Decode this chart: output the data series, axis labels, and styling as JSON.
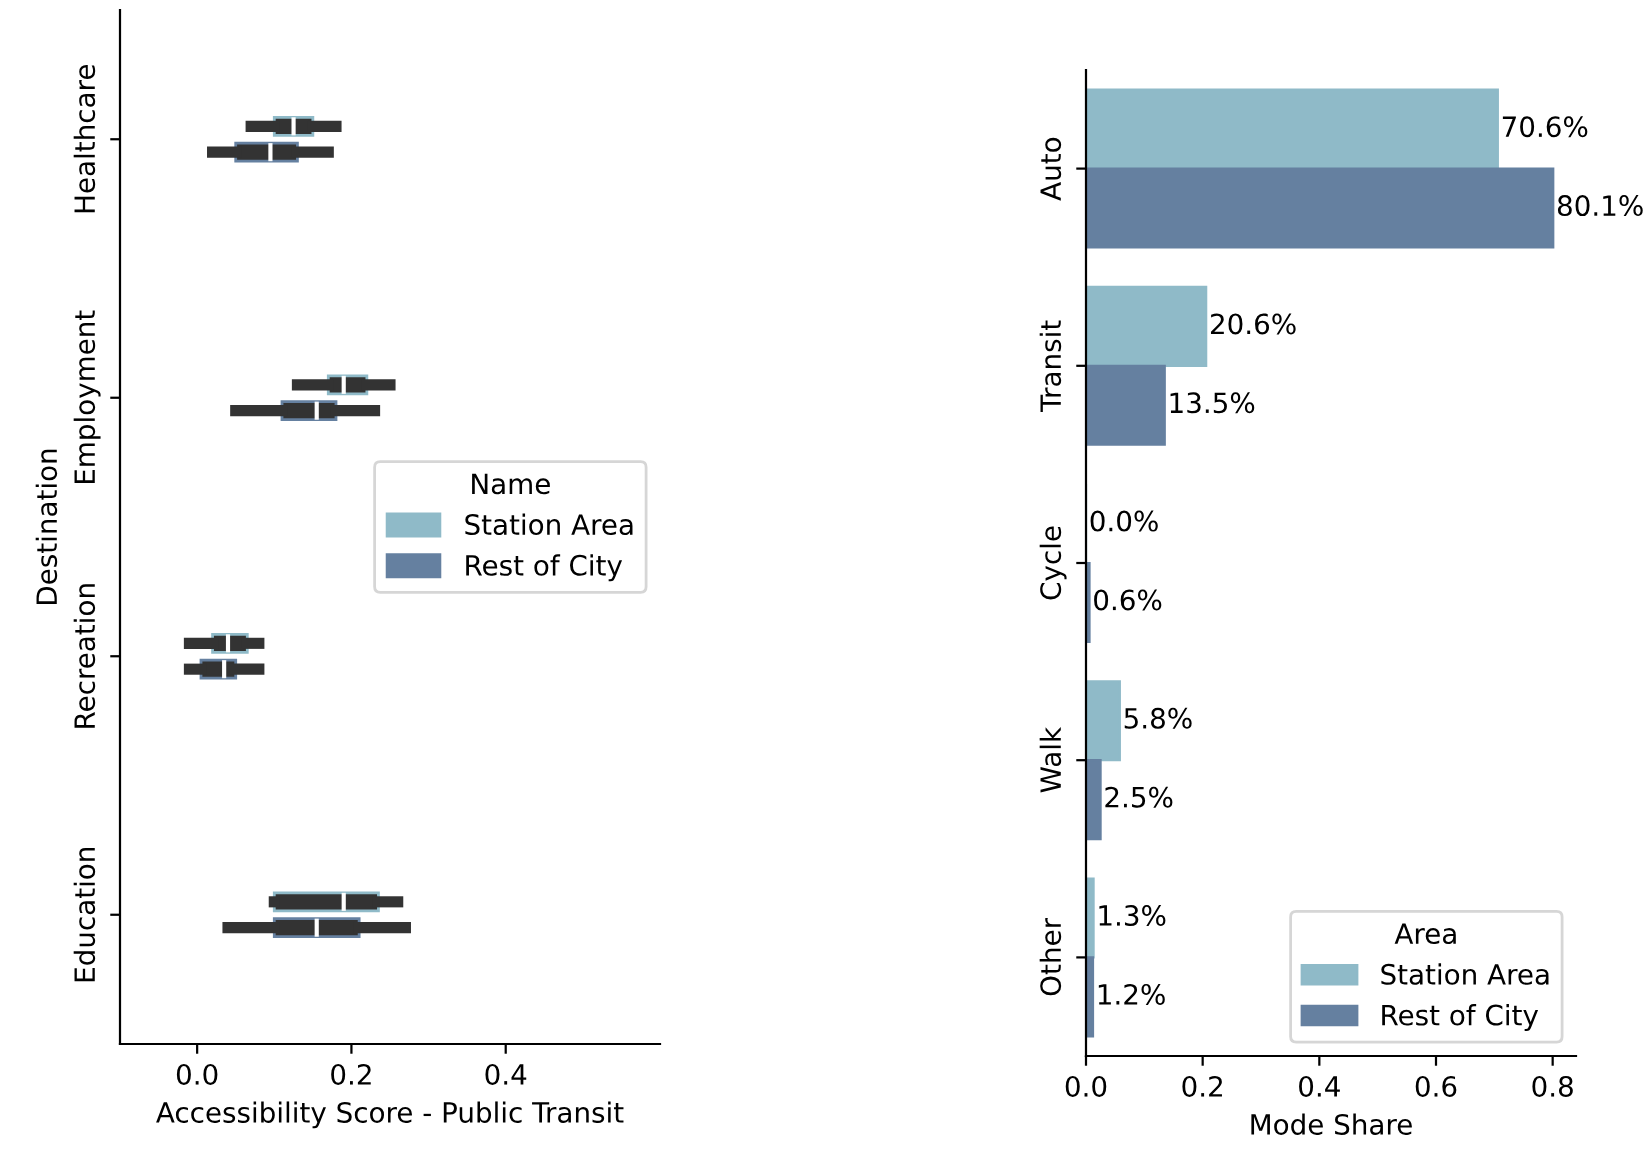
{
  "chart_data": [
    {
      "type": "box",
      "orientation": "horizontal",
      "xlabel": "Accessibility Score - Public Transit",
      "ylabel": "Destination",
      "legend_title": "Name",
      "legend": "center right",
      "categories": [
        "Healthcare",
        "Employment",
        "Recreation",
        "Education"
      ],
      "xlim": [
        -0.1,
        0.6
      ],
      "xticks": [
        {
          "value": 0,
          "label": "0.0"
        },
        0.2,
        0.4
      ],
      "series": [
        {
          "name": "Station Area",
          "color": "#8fbac8",
          "boxes": [
            {
              "low": 0.07,
              "q1": 0.1,
              "median": 0.125,
              "q3": 0.15,
              "high": 0.18
            },
            {
              "low": 0.13,
              "q1": 0.17,
              "median": 0.19,
              "q3": 0.22,
              "high": 0.25
            },
            {
              "low": -0.01,
              "q1": 0.02,
              "median": 0.04,
              "q3": 0.065,
              "high": 0.08
            },
            {
              "low": 0.1,
              "q1": 0.1,
              "median": 0.19,
              "q3": 0.235,
              "high": 0.26
            }
          ]
        },
        {
          "name": "Rest of City",
          "color": "#6580a0",
          "boxes": [
            {
              "low": 0.02,
              "q1": 0.05,
              "median": 0.095,
              "q3": 0.13,
              "high": 0.17
            },
            {
              "low": 0.05,
              "q1": 0.11,
              "median": 0.155,
              "q3": 0.18,
              "high": 0.23
            },
            {
              "low": -0.01,
              "q1": 0.005,
              "median": 0.035,
              "q3": 0.05,
              "high": 0.08
            },
            {
              "low": 0.04,
              "q1": 0.1,
              "median": 0.155,
              "q3": 0.21,
              "high": 0.27
            }
          ]
        }
      ]
    },
    {
      "type": "bar",
      "orientation": "horizontal",
      "xlabel": "Mode Share",
      "legend_title": "Area",
      "legend": "bottom right",
      "categories": [
        "Auto",
        "Transit",
        "Cycle",
        "Walk",
        "Other"
      ],
      "xlim": [
        0,
        0.84
      ],
      "xticks": [
        {
          "value": 0,
          "label": "0.0"
        },
        0.2,
        0.4,
        0.6,
        0.8
      ],
      "series": [
        {
          "name": "Station Area",
          "color": "#8fbac8",
          "values": [
            0.706,
            0.206,
            0.0,
            0.058,
            0.013
          ],
          "value_labels": [
            "70.6%",
            "20.6%",
            "0.0%",
            "5.8%",
            "1.3%"
          ]
        },
        {
          "name": "Rest of City",
          "color": "#6580a0",
          "values": [
            0.801,
            0.135,
            0.006,
            0.025,
            0.012
          ],
          "value_labels": [
            "80.1%",
            "13.5%",
            "0.6%",
            "2.5%",
            "1.2%"
          ]
        }
      ]
    }
  ]
}
